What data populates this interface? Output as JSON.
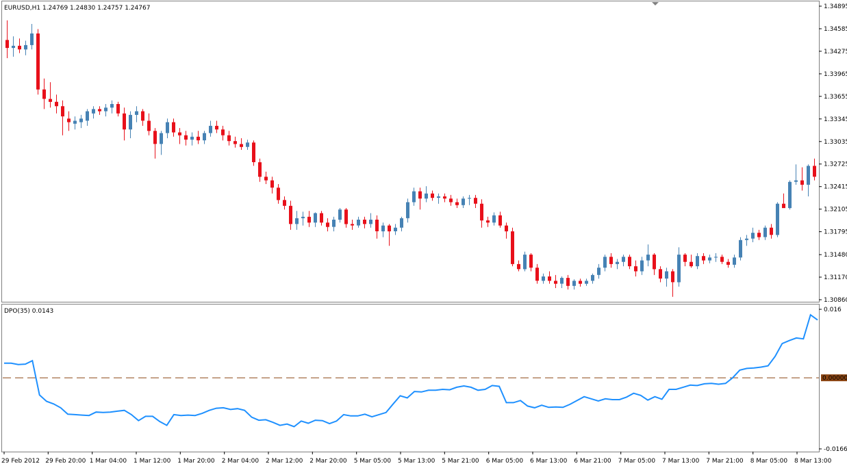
{
  "main_chart": {
    "symbol_info": "EURUSD,H1  1.24769 1.24830 1.24757 1.24767"
  },
  "indicator": {
    "info": "DPO(35) 0.0143",
    "zero_label": "0.00000"
  },
  "colors": {
    "bull": "#4682B4",
    "bear": "#E8101A",
    "dpo_line": "#1E90FF",
    "zero_line": "#8B4513",
    "frame": "#7F7F7F"
  },
  "chart_data": [
    {
      "type": "candlestick",
      "title": "EURUSD,H1",
      "ylim": [
        1.3086,
        1.34895
      ],
      "y_ticks": [
        "1.34895",
        "1.34585",
        "1.34275",
        "1.33965",
        "1.33655",
        "1.33345",
        "1.33035",
        "1.32725",
        "1.32415",
        "1.32105",
        "1.31795",
        "1.31480",
        "1.31170",
        "1.30860"
      ],
      "x_ticks": [
        "29 Feb 2012",
        "29 Feb 20:00",
        "1 Mar 04:00",
        "1 Mar 12:00",
        "1 Mar 20:00",
        "2 Mar 04:00",
        "2 Mar 12:00",
        "2 Mar 20:00",
        "5 Mar 05:00",
        "5 Mar 13:00",
        "5 Mar 21:00",
        "6 Mar 05:00",
        "6 Mar 13:00",
        "6 Mar 21:00",
        "7 Mar 05:00",
        "7 Mar 13:00",
        "7 Mar 21:00",
        "8 Mar 05:00",
        "8 Mar 13:00"
      ],
      "candles": [
        [
          1.3443,
          1.347,
          1.3418,
          1.3432
        ],
        [
          1.3432,
          1.3448,
          1.342,
          1.3435
        ],
        [
          1.3435,
          1.3445,
          1.3425,
          1.343
        ],
        [
          1.343,
          1.3442,
          1.3422,
          1.3436
        ],
        [
          1.3436,
          1.3465,
          1.343,
          1.3452
        ],
        [
          1.3452,
          1.3458,
          1.3368,
          1.3375
        ],
        [
          1.3375,
          1.339,
          1.3348,
          1.3362
        ],
        [
          1.3362,
          1.3385,
          1.335,
          1.3358
        ],
        [
          1.3358,
          1.3368,
          1.3342,
          1.3352
        ],
        [
          1.3352,
          1.336,
          1.3312,
          1.3338
        ],
        [
          1.3335,
          1.3345,
          1.3318,
          1.333
        ],
        [
          1.3328,
          1.3338,
          1.332,
          1.3332
        ],
        [
          1.333,
          1.334,
          1.3322,
          1.3335
        ],
        [
          1.3332,
          1.3348,
          1.3325,
          1.3345
        ],
        [
          1.3342,
          1.3352,
          1.3335,
          1.3348
        ],
        [
          1.3348,
          1.3352,
          1.334,
          1.3345
        ],
        [
          1.3345,
          1.3355,
          1.3338,
          1.335
        ],
        [
          1.335,
          1.336,
          1.3342,
          1.3355
        ],
        [
          1.3355,
          1.3358,
          1.3338,
          1.3342
        ],
        [
          1.3342,
          1.335,
          1.3305,
          1.332
        ],
        [
          1.332,
          1.3345,
          1.3308,
          1.334
        ],
        [
          1.334,
          1.3352,
          1.333,
          1.3345
        ],
        [
          1.3345,
          1.3348,
          1.3325,
          1.3332
        ],
        [
          1.3332,
          1.3342,
          1.3312,
          1.3318
        ],
        [
          1.3318,
          1.3322,
          1.328,
          1.33
        ],
        [
          1.33,
          1.3318,
          1.3285,
          1.3315
        ],
        [
          1.3315,
          1.3335,
          1.3308,
          1.333
        ],
        [
          1.333,
          1.3335,
          1.331,
          1.3316
        ],
        [
          1.3316,
          1.3322,
          1.33,
          1.3312
        ],
        [
          1.3312,
          1.3318,
          1.3298,
          1.3306
        ],
        [
          1.3306,
          1.3316,
          1.3298,
          1.331
        ],
        [
          1.331,
          1.3318,
          1.33,
          1.3305
        ],
        [
          1.3305,
          1.3318,
          1.33,
          1.3315
        ],
        [
          1.3315,
          1.3332,
          1.331,
          1.3325
        ],
        [
          1.3325,
          1.3332,
          1.3315,
          1.332
        ],
        [
          1.332,
          1.3325,
          1.3305,
          1.3312
        ],
        [
          1.3312,
          1.3318,
          1.3298,
          1.3304
        ],
        [
          1.3304,
          1.331,
          1.3295,
          1.33
        ],
        [
          1.33,
          1.3308,
          1.3292,
          1.3296
        ],
        [
          1.3296,
          1.3306,
          1.3292,
          1.3302
        ],
        [
          1.3302,
          1.3305,
          1.327,
          1.3275
        ],
        [
          1.3275,
          1.328,
          1.3248,
          1.3255
        ],
        [
          1.3255,
          1.3262,
          1.3245,
          1.325
        ],
        [
          1.325,
          1.3255,
          1.3232,
          1.324
        ],
        [
          1.324,
          1.3245,
          1.3218,
          1.3223
        ],
        [
          1.3223,
          1.3228,
          1.321,
          1.3215
        ],
        [
          1.3215,
          1.3222,
          1.3182,
          1.319
        ],
        [
          1.319,
          1.3208,
          1.3182,
          1.3198
        ],
        [
          1.3198,
          1.3207,
          1.3188,
          1.32
        ],
        [
          1.32,
          1.3208,
          1.3186,
          1.3192
        ],
        [
          1.3192,
          1.3206,
          1.3186,
          1.3205
        ],
        [
          1.3205,
          1.3208,
          1.3188,
          1.3192
        ],
        [
          1.3192,
          1.3198,
          1.318,
          1.3186
        ],
        [
          1.3186,
          1.32,
          1.318,
          1.3196
        ],
        [
          1.3196,
          1.3212,
          1.3192,
          1.321
        ],
        [
          1.321,
          1.3212,
          1.3185,
          1.319
        ],
        [
          1.319,
          1.3196,
          1.3182,
          1.3188
        ],
        [
          1.3188,
          1.32,
          1.3185,
          1.3196
        ],
        [
          1.3196,
          1.32,
          1.3184,
          1.319
        ],
        [
          1.319,
          1.3205,
          1.3185,
          1.3196
        ],
        [
          1.3196,
          1.3202,
          1.317,
          1.318
        ],
        [
          1.318,
          1.3192,
          1.3172,
          1.3188
        ],
        [
          1.3188,
          1.319,
          1.316,
          1.318
        ],
        [
          1.318,
          1.319,
          1.3175,
          1.3185
        ],
        [
          1.3185,
          1.32,
          1.318,
          1.3198
        ],
        [
          1.3198,
          1.3225,
          1.3192,
          1.322
        ],
        [
          1.322,
          1.324,
          1.3215,
          1.3235
        ],
        [
          1.3235,
          1.324,
          1.321,
          1.3225
        ],
        [
          1.3225,
          1.3242,
          1.322,
          1.3232
        ],
        [
          1.3232,
          1.3236,
          1.3222,
          1.3226
        ],
        [
          1.3226,
          1.3232,
          1.3218,
          1.3228
        ],
        [
          1.3228,
          1.3232,
          1.322,
          1.3225
        ],
        [
          1.3225,
          1.323,
          1.3215,
          1.322
        ],
        [
          1.322,
          1.3225,
          1.3212,
          1.3216
        ],
        [
          1.3216,
          1.3228,
          1.3212,
          1.3225
        ],
        [
          1.3225,
          1.323,
          1.3216,
          1.3226
        ],
        [
          1.3226,
          1.323,
          1.3212,
          1.3218
        ],
        [
          1.3218,
          1.3224,
          1.3185,
          1.3195
        ],
        [
          1.3195,
          1.32,
          1.3186,
          1.3192
        ],
        [
          1.3192,
          1.3206,
          1.3188,
          1.3202
        ],
        [
          1.3202,
          1.3207,
          1.3185,
          1.3188
        ],
        [
          1.3188,
          1.3192,
          1.317,
          1.318
        ],
        [
          1.318,
          1.3185,
          1.3132,
          1.3135
        ],
        [
          1.3135,
          1.314,
          1.3125,
          1.3128
        ],
        [
          1.3128,
          1.3152,
          1.3125,
          1.3148
        ],
        [
          1.3148,
          1.315,
          1.3125,
          1.313
        ],
        [
          1.313,
          1.3135,
          1.3108,
          1.3112
        ],
        [
          1.3112,
          1.3122,
          1.3108,
          1.3118
        ],
        [
          1.3118,
          1.3125,
          1.3108,
          1.3112
        ],
        [
          1.3112,
          1.312,
          1.3102,
          1.3108
        ],
        [
          1.3108,
          1.3118,
          1.3102,
          1.3116
        ],
        [
          1.3116,
          1.312,
          1.31,
          1.3105
        ],
        [
          1.3105,
          1.3114,
          1.31,
          1.3112
        ],
        [
          1.3112,
          1.3115,
          1.3104,
          1.3108
        ],
        [
          1.3108,
          1.3115,
          1.3105,
          1.3112
        ],
        [
          1.3112,
          1.3122,
          1.3108,
          1.312
        ],
        [
          1.312,
          1.3135,
          1.3115,
          1.313
        ],
        [
          1.313,
          1.3148,
          1.3125,
          1.3145
        ],
        [
          1.3145,
          1.315,
          1.313,
          1.3135
        ],
        [
          1.3135,
          1.3142,
          1.3128,
          1.3138
        ],
        [
          1.3138,
          1.3148,
          1.3132,
          1.3145
        ],
        [
          1.3145,
          1.3148,
          1.3128,
          1.3132
        ],
        [
          1.3132,
          1.314,
          1.3118,
          1.3125
        ],
        [
          1.3125,
          1.3145,
          1.312,
          1.314
        ],
        [
          1.314,
          1.3162,
          1.3132,
          1.3148
        ],
        [
          1.3148,
          1.315,
          1.312,
          1.3128
        ],
        [
          1.3128,
          1.3132,
          1.311,
          1.3115
        ],
        [
          1.3115,
          1.313,
          1.3104,
          1.3125
        ],
        [
          1.3125,
          1.3128,
          1.309,
          1.311
        ],
        [
          1.311,
          1.3158,
          1.3104,
          1.3148
        ],
        [
          1.3148,
          1.315,
          1.3132,
          1.3138
        ],
        [
          1.3138,
          1.3148,
          1.313,
          1.3132
        ],
        [
          1.3132,
          1.315,
          1.3128,
          1.3146
        ],
        [
          1.3146,
          1.315,
          1.3135,
          1.314
        ],
        [
          1.314,
          1.3148,
          1.3136,
          1.3144
        ],
        [
          1.3144,
          1.315,
          1.3138,
          1.3145
        ],
        [
          1.3145,
          1.3148,
          1.3135,
          1.3138
        ],
        [
          1.3138,
          1.3142,
          1.313,
          1.3134
        ],
        [
          1.3134,
          1.3148,
          1.313,
          1.3144
        ],
        [
          1.3144,
          1.3172,
          1.314,
          1.3168
        ],
        [
          1.3168,
          1.3175,
          1.316,
          1.317
        ],
        [
          1.317,
          1.3185,
          1.3165,
          1.3178
        ],
        [
          1.3178,
          1.3182,
          1.3168,
          1.3172
        ],
        [
          1.3172,
          1.3188,
          1.3168,
          1.3185
        ],
        [
          1.3185,
          1.319,
          1.317,
          1.3175
        ],
        [
          1.3175,
          1.322,
          1.3172,
          1.3218
        ],
        [
          1.3218,
          1.3232,
          1.3212,
          1.3212
        ],
        [
          1.3212,
          1.325,
          1.321,
          1.3248
        ],
        [
          1.3248,
          1.3272,
          1.3244,
          1.325
        ],
        [
          1.325,
          1.3268,
          1.3236,
          1.3244
        ],
        [
          1.3244,
          1.3272,
          1.3228,
          1.327
        ],
        [
          1.327,
          1.328,
          1.325,
          1.3255
        ]
      ]
    },
    {
      "type": "line",
      "title": "DPO(35)",
      "ylim": [
        -0.0166,
        0.016
      ],
      "y_ticks": [
        "0.016",
        "0.00000",
        "-0.0166"
      ],
      "series": [
        {
          "values": [
            0.0034,
            0.0034,
            0.0031,
            0.0032,
            0.004,
            -0.004,
            -0.0055,
            -0.0061,
            -0.007,
            -0.0085,
            -0.0086,
            -0.0087,
            -0.0088,
            -0.008,
            -0.0081,
            -0.008,
            -0.0078,
            -0.0076,
            -0.0086,
            -0.01,
            -0.009,
            -0.009,
            -0.0102,
            -0.0111,
            -0.0086,
            -0.0088,
            -0.0087,
            -0.0088,
            -0.0083,
            -0.0076,
            -0.0071,
            -0.007,
            -0.0074,
            -0.0072,
            -0.0076,
            -0.0092,
            -0.0099,
            -0.0098,
            -0.0104,
            -0.0111,
            -0.0108,
            -0.0114,
            -0.0101,
            -0.0106,
            -0.0099,
            -0.01,
            -0.0107,
            -0.0101,
            -0.0086,
            -0.0089,
            -0.0089,
            -0.0085,
            -0.0091,
            -0.0086,
            -0.0081,
            -0.0061,
            -0.0042,
            -0.0047,
            -0.0032,
            -0.0033,
            -0.0029,
            -0.0029,
            -0.0027,
            -0.0028,
            -0.0022,
            -0.0019,
            -0.0022,
            -0.0029,
            -0.0027,
            -0.0018,
            -0.002,
            -0.0058,
            -0.0058,
            -0.0053,
            -0.0066,
            -0.007,
            -0.0064,
            -0.0069,
            -0.0068,
            -0.0069,
            -0.0062,
            -0.0053,
            -0.0044,
            -0.0049,
            -0.0054,
            -0.0049,
            -0.0051,
            -0.0051,
            -0.0045,
            -0.0036,
            -0.0041,
            -0.0052,
            -0.0044,
            -0.005,
            -0.0027,
            -0.0027,
            -0.0022,
            -0.0017,
            -0.0018,
            -0.0014,
            -0.0013,
            -0.0015,
            -0.0013,
            0.0,
            0.0018,
            0.0022,
            0.0023,
            0.0025,
            0.0028,
            0.005,
            0.008,
            0.0087,
            0.0093,
            0.0091,
            0.0147,
            0.0135
          ]
        }
      ]
    }
  ]
}
